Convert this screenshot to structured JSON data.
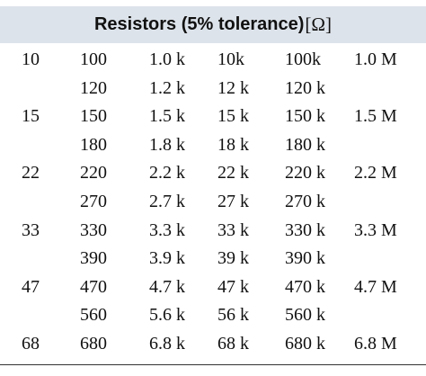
{
  "table": {
    "title": "Resistors (5% tolerance)",
    "unit": "[Ω]",
    "rows": [
      [
        "10",
        "100",
        "1.0 k",
        "10k",
        "100k",
        "1.0 M"
      ],
      [
        "",
        "120",
        "1.2 k",
        "12 k",
        "120 k",
        ""
      ],
      [
        "15",
        "150",
        "1.5 k",
        "15 k",
        "150 k",
        "1.5 M"
      ],
      [
        "",
        "180",
        "1.8 k",
        "18 k",
        "180 k",
        ""
      ],
      [
        "22",
        "220",
        "2.2 k",
        "22 k",
        "220 k",
        "2.2 M"
      ],
      [
        "",
        "270",
        "2.7 k",
        "27 k",
        "270 k",
        ""
      ],
      [
        "33",
        "330",
        "3.3 k",
        "33 k",
        "330 k",
        "3.3 M"
      ],
      [
        "",
        "390",
        "3.9 k",
        "39 k",
        "390 k",
        ""
      ],
      [
        "47",
        "470",
        "4.7 k",
        "47 k",
        "470 k",
        "4.7 M"
      ],
      [
        "",
        "560",
        "5.6 k",
        "56 k",
        "560 k",
        ""
      ],
      [
        "68",
        "680",
        "6.8 k",
        "68 k",
        "680 k",
        "6.8 M"
      ]
    ]
  }
}
